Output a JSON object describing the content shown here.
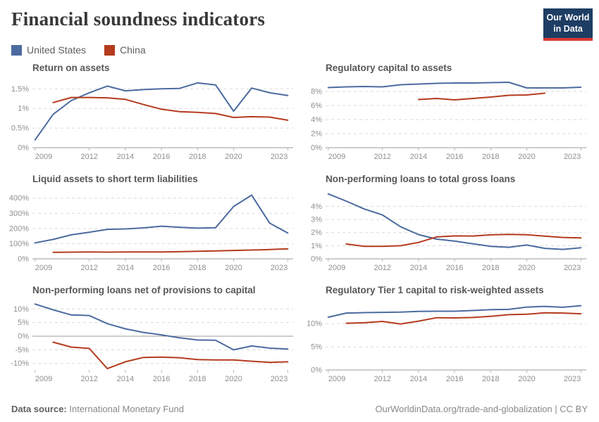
{
  "header": {
    "title": "Financial soundness indicators",
    "logo_line1": "Our World",
    "logo_line2": "in Data",
    "logo_bg_color": "#1d3d63",
    "logo_accent_color": "#d73b33"
  },
  "legend": [
    {
      "label": "United States",
      "color": "#4c6b9f"
    },
    {
      "label": "China",
      "color": "#b53b1e"
    }
  ],
  "footer": {
    "source_label": "Data source:",
    "source_text": " International Monetary Fund",
    "right_text": "OurWorldinData.org/trade-and-globalization | CC BY"
  },
  "chart_data": [
    {
      "type": "line",
      "title": "Return on assets",
      "x_domain": [
        2008.85,
        2023.3
      ],
      "x_ticks": [
        2009,
        2012,
        2014,
        2016,
        2018,
        2020,
        2023
      ],
      "y_domain": [
        0,
        1.72
      ],
      "y_ticks": [
        {
          "v": 0,
          "l": "0%"
        },
        {
          "v": 0.5,
          "l": "0.5%"
        },
        {
          "v": 1,
          "l": "1%"
        },
        {
          "v": 1.5,
          "l": "1.5%"
        }
      ],
      "series": [
        {
          "name": "United States",
          "color": "#4c6b9f",
          "start_year": 2009,
          "values": [
            0.2,
            0.85,
            1.2,
            1.4,
            1.57,
            1.45,
            1.48,
            1.5,
            1.51,
            1.65,
            1.6,
            0.93,
            1.52,
            1.4,
            1.33
          ]
        },
        {
          "name": "China",
          "color": "#b53b1e",
          "start_year": 2010,
          "values": [
            1.15,
            1.28,
            1.28,
            1.27,
            1.23,
            1.1,
            0.98,
            0.92,
            0.9,
            0.87,
            0.77,
            0.79,
            0.78,
            0.7
          ]
        }
      ]
    },
    {
      "type": "line",
      "title": "Regulatory capital to assets",
      "x_domain": [
        2008.85,
        2023.3
      ],
      "x_ticks": [
        2009,
        2012,
        2014,
        2016,
        2018,
        2020,
        2023
      ],
      "y_domain": [
        0,
        9.6
      ],
      "y_ticks": [
        {
          "v": 0,
          "l": "0%"
        },
        {
          "v": 2,
          "l": "2%"
        },
        {
          "v": 4,
          "l": "4%"
        },
        {
          "v": 6,
          "l": "6%"
        },
        {
          "v": 8,
          "l": "8%"
        }
      ],
      "series": [
        {
          "name": "United States",
          "color": "#4c6b9f",
          "start_year": 2009,
          "values": [
            8.55,
            8.65,
            8.7,
            8.65,
            8.95,
            9.05,
            9.15,
            9.2,
            9.2,
            9.25,
            9.3,
            8.5,
            8.5,
            8.5,
            8.6
          ]
        },
        {
          "name": "China",
          "color": "#b53b1e",
          "start_year": 2014,
          "values": [
            6.85,
            7.0,
            6.8,
            7.0,
            7.2,
            7.45,
            7.5,
            7.75
          ]
        }
      ]
    },
    {
      "type": "line",
      "title": "Liquid assets to short term liabilities",
      "x_domain": [
        2008.85,
        2023.3
      ],
      "x_ticks": [
        2009,
        2012,
        2014,
        2016,
        2018,
        2020,
        2023
      ],
      "y_domain": [
        0,
        445
      ],
      "y_ticks": [
        {
          "v": 0,
          "l": "0%"
        },
        {
          "v": 100,
          "l": "100%"
        },
        {
          "v": 200,
          "l": "200%"
        },
        {
          "v": 300,
          "l": "300%"
        },
        {
          "v": 400,
          "l": "400%"
        }
      ],
      "series": [
        {
          "name": "United States",
          "color": "#4c6b9f",
          "start_year": 2009,
          "values": [
            105,
            128,
            158,
            175,
            194,
            197,
            204,
            215,
            208,
            202,
            205,
            345,
            420,
            235,
            170
          ]
        },
        {
          "name": "China",
          "color": "#b53b1e",
          "start_year": 2010,
          "values": [
            43,
            44,
            45,
            44,
            45,
            45,
            45,
            47,
            50,
            52,
            55,
            58,
            61,
            66
          ]
        }
      ]
    },
    {
      "type": "line",
      "title": "Non-performing loans to total gross loans",
      "x_domain": [
        2008.85,
        2023.3
      ],
      "x_ticks": [
        2009,
        2012,
        2014,
        2016,
        2018,
        2020,
        2023
      ],
      "y_domain": [
        0,
        5.15
      ],
      "y_ticks": [
        {
          "v": 0,
          "l": "0%"
        },
        {
          "v": 1,
          "l": "1%"
        },
        {
          "v": 2,
          "l": "2%"
        },
        {
          "v": 3,
          "l": "3%"
        },
        {
          "v": 4,
          "l": "4%"
        }
      ],
      "series": [
        {
          "name": "United States",
          "color": "#4c6b9f",
          "start_year": 2009,
          "values": [
            4.95,
            4.4,
            3.8,
            3.35,
            2.45,
            1.85,
            1.5,
            1.35,
            1.15,
            0.95,
            0.88,
            1.05,
            0.8,
            0.72,
            0.85
          ]
        },
        {
          "name": "China",
          "color": "#b53b1e",
          "start_year": 2010,
          "values": [
            1.13,
            0.95,
            0.95,
            1.0,
            1.25,
            1.67,
            1.75,
            1.74,
            1.83,
            1.86,
            1.84,
            1.73,
            1.63,
            1.6
          ]
        }
      ]
    },
    {
      "type": "line",
      "title": "Non-performing loans net of provisions to capital",
      "x_domain": [
        2008.85,
        2023.3
      ],
      "x_ticks": [
        2009,
        2012,
        2014,
        2016,
        2018,
        2020,
        2023
      ],
      "y_domain": [
        -12.4,
        12.4
      ],
      "y_ticks": [
        {
          "v": -10,
          "l": "-10%"
        },
        {
          "v": -5,
          "l": "-5%"
        },
        {
          "v": 0,
          "l": "0%"
        },
        {
          "v": 5,
          "l": "5%"
        },
        {
          "v": 10,
          "l": "10%"
        }
      ],
      "series": [
        {
          "name": "United States",
          "color": "#4c6b9f",
          "start_year": 2009,
          "values": [
            11.8,
            9.7,
            7.8,
            7.6,
            4.6,
            2.7,
            1.4,
            0.5,
            -0.6,
            -1.4,
            -1.5,
            -5.0,
            -3.6,
            -4.4,
            -4.7
          ]
        },
        {
          "name": "China",
          "color": "#b53b1e",
          "start_year": 2010,
          "values": [
            -2.2,
            -4.0,
            -4.5,
            -11.9,
            -9.4,
            -7.8,
            -7.7,
            -7.9,
            -8.6,
            -8.7,
            -8.7,
            -9.2,
            -9.6,
            -9.4
          ]
        }
      ]
    },
    {
      "type": "line",
      "title": "Regulatory Tier 1 capital to risk-weighted assets",
      "x_domain": [
        2008.85,
        2023.3
      ],
      "x_ticks": [
        2009,
        2012,
        2014,
        2016,
        2018,
        2020,
        2023
      ],
      "y_domain": [
        0,
        14.6
      ],
      "y_ticks": [
        {
          "v": 0,
          "l": "0%"
        },
        {
          "v": 5,
          "l": "5%"
        },
        {
          "v": 10,
          "l": "10%"
        }
      ],
      "series": [
        {
          "name": "United States",
          "color": "#4c6b9f",
          "start_year": 2009,
          "values": [
            11.4,
            12.3,
            12.4,
            12.45,
            12.5,
            12.65,
            12.7,
            12.7,
            12.85,
            13.05,
            13.1,
            13.6,
            13.75,
            13.55,
            13.9
          ]
        },
        {
          "name": "China",
          "color": "#b53b1e",
          "start_year": 2010,
          "values": [
            10.1,
            10.2,
            10.5,
            9.95,
            10.55,
            11.3,
            11.25,
            11.35,
            11.6,
            11.95,
            12.05,
            12.35,
            12.3,
            12.15
          ]
        }
      ]
    }
  ]
}
